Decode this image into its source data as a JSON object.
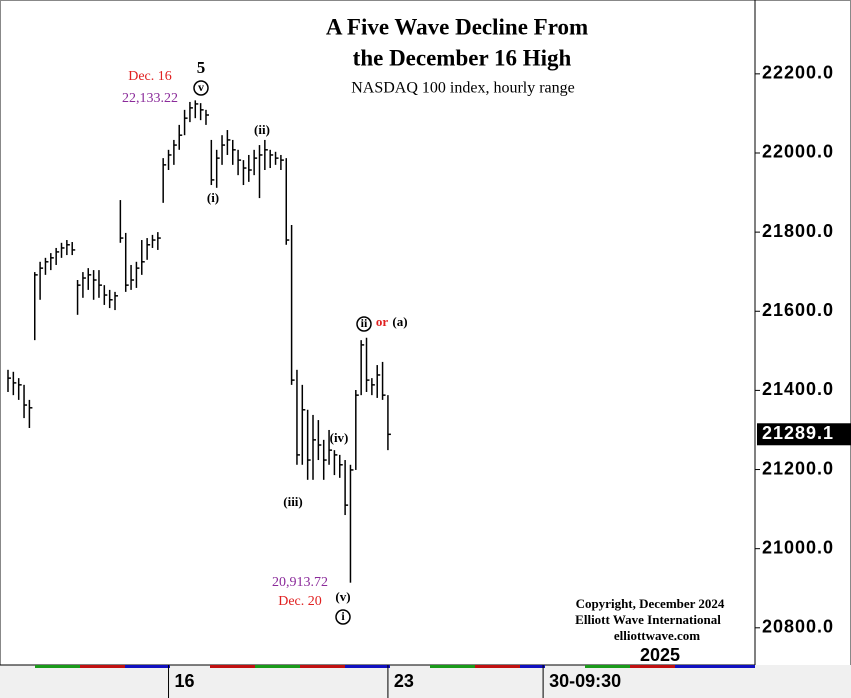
{
  "chart_data": {
    "type": "ohlc",
    "title": [
      "A Five Wave Decline From",
      "the December 16 High"
    ],
    "subtitle": "NASDAQ 100 index, hourly range",
    "x": [
      0,
      1,
      2,
      3,
      4,
      5,
      6,
      7,
      8,
      9,
      10,
      11,
      12,
      13,
      14,
      15,
      16,
      17,
      18,
      19,
      20,
      21,
      22,
      23,
      24,
      25,
      26,
      27,
      28,
      29,
      30,
      31,
      32,
      33,
      34,
      35,
      36,
      37,
      38,
      39,
      40,
      41,
      42,
      43,
      44,
      45,
      46,
      47,
      48,
      49,
      50,
      51,
      52,
      53,
      54,
      55,
      56,
      57,
      58,
      59,
      60,
      61,
      62,
      63,
      64,
      65,
      66,
      67,
      68,
      69,
      70,
      71
    ],
    "high": [
      21452,
      21447,
      21431,
      21414,
      21376,
      21699,
      21725,
      21735,
      21747,
      21760,
      21773,
      21780,
      21775,
      21679,
      21699,
      21709,
      21704,
      21704,
      21666,
      21654,
      21649,
      21881,
      21798,
      21717,
      21725,
      21780,
      21785,
      21793,
      21800,
      21987,
      22008,
      22033,
      22071,
      22109,
      22129,
      22133,
      22126,
      22109,
      22033,
      22008,
      22045,
      22058,
      22033,
      22008,
      21982,
      21995,
      22008,
      22020,
      22033,
      22008,
      22003,
      21995,
      21987,
      21818,
      21452,
      21414,
      21351,
      21338,
      21325,
      21275,
      21300,
      21249,
      21237,
      21224,
      21212,
      21401,
      21527,
      21533,
      21431,
      21464,
      21472,
      21388
    ],
    "low": [
      21396,
      21388,
      21376,
      21330,
      21305,
      21527,
      21629,
      21692,
      21704,
      21717,
      21735,
      21742,
      21742,
      21591,
      21634,
      21654,
      21629,
      21634,
      21616,
      21608,
      21603,
      21773,
      21649,
      21654,
      21659,
      21692,
      21730,
      21760,
      21755,
      21874,
      21957,
      21970,
      22008,
      22045,
      22078,
      22088,
      22083,
      22071,
      21919,
      21912,
      21970,
      21995,
      21970,
      21944,
      21919,
      21927,
      21944,
      21886,
      21957,
      21962,
      21970,
      21957,
      21768,
      21414,
      21212,
      21212,
      21174,
      21174,
      21224,
      21174,
      21212,
      21186,
      21179,
      21085,
      20914,
      21199,
      21388,
      21396,
      21388,
      21381,
      21376,
      21249
    ],
    "close": [
      21431,
      21419,
      21414,
      21363,
      21356,
      21692,
      21709,
      21725,
      21735,
      21750,
      21760,
      21768,
      21755,
      21666,
      21684,
      21692,
      21679,
      21666,
      21641,
      21629,
      21639,
      21785,
      21666,
      21679,
      21709,
      21725,
      21768,
      21780,
      21785,
      21970,
      21995,
      22020,
      22045,
      22088,
      22114,
      22124,
      22109,
      22096,
      21932,
      21987,
      22020,
      22033,
      22008,
      21982,
      21962,
      21957,
      21987,
      21995,
      22008,
      21995,
      21987,
      21982,
      21780,
      21426,
      21237,
      21351,
      21224,
      21275,
      21262,
      21224,
      21249,
      21237,
      21212,
      21110,
      21199,
      21388,
      21515,
      21426,
      21414,
      21439,
      21388,
      21289
    ],
    "color": "#000000",
    "xlim": [
      -0.56,
      139.6
    ],
    "xticks": [
      {
        "value": 30,
        "label": "16"
      },
      {
        "value": 71,
        "label": "23"
      },
      {
        "value": 100,
        "label": "30-09:30"
      }
    ],
    "year_label": "2025",
    "ylim": [
      20706,
      22374
    ],
    "yticks": [
      {
        "value": 20800,
        "label": "20800.0"
      },
      {
        "value": 21000,
        "label": "21000.0"
      },
      {
        "value": 21200,
        "label": "21200.0"
      },
      {
        "value": 21400,
        "label": "21400.0"
      },
      {
        "value": 21600,
        "label": "21600.0"
      },
      {
        "value": 21800,
        "label": "21800.0"
      },
      {
        "value": 22000,
        "label": "22000.0"
      },
      {
        "value": 22200,
        "label": "22200.0"
      }
    ],
    "last_value": 21289.1,
    "annotations": [
      "Dec. 16",
      "22,133.22",
      "5",
      "v",
      "(ii)",
      "(i)",
      "(iii)",
      "(iv)",
      "(v)",
      "i",
      "ii",
      "or",
      "(a)",
      "20,913.72",
      "Dec. 20"
    ],
    "copyright": [
      "Copyright, December 2024",
      "Elliott Wave International",
      "elliottwave.com"
    ]
  }
}
